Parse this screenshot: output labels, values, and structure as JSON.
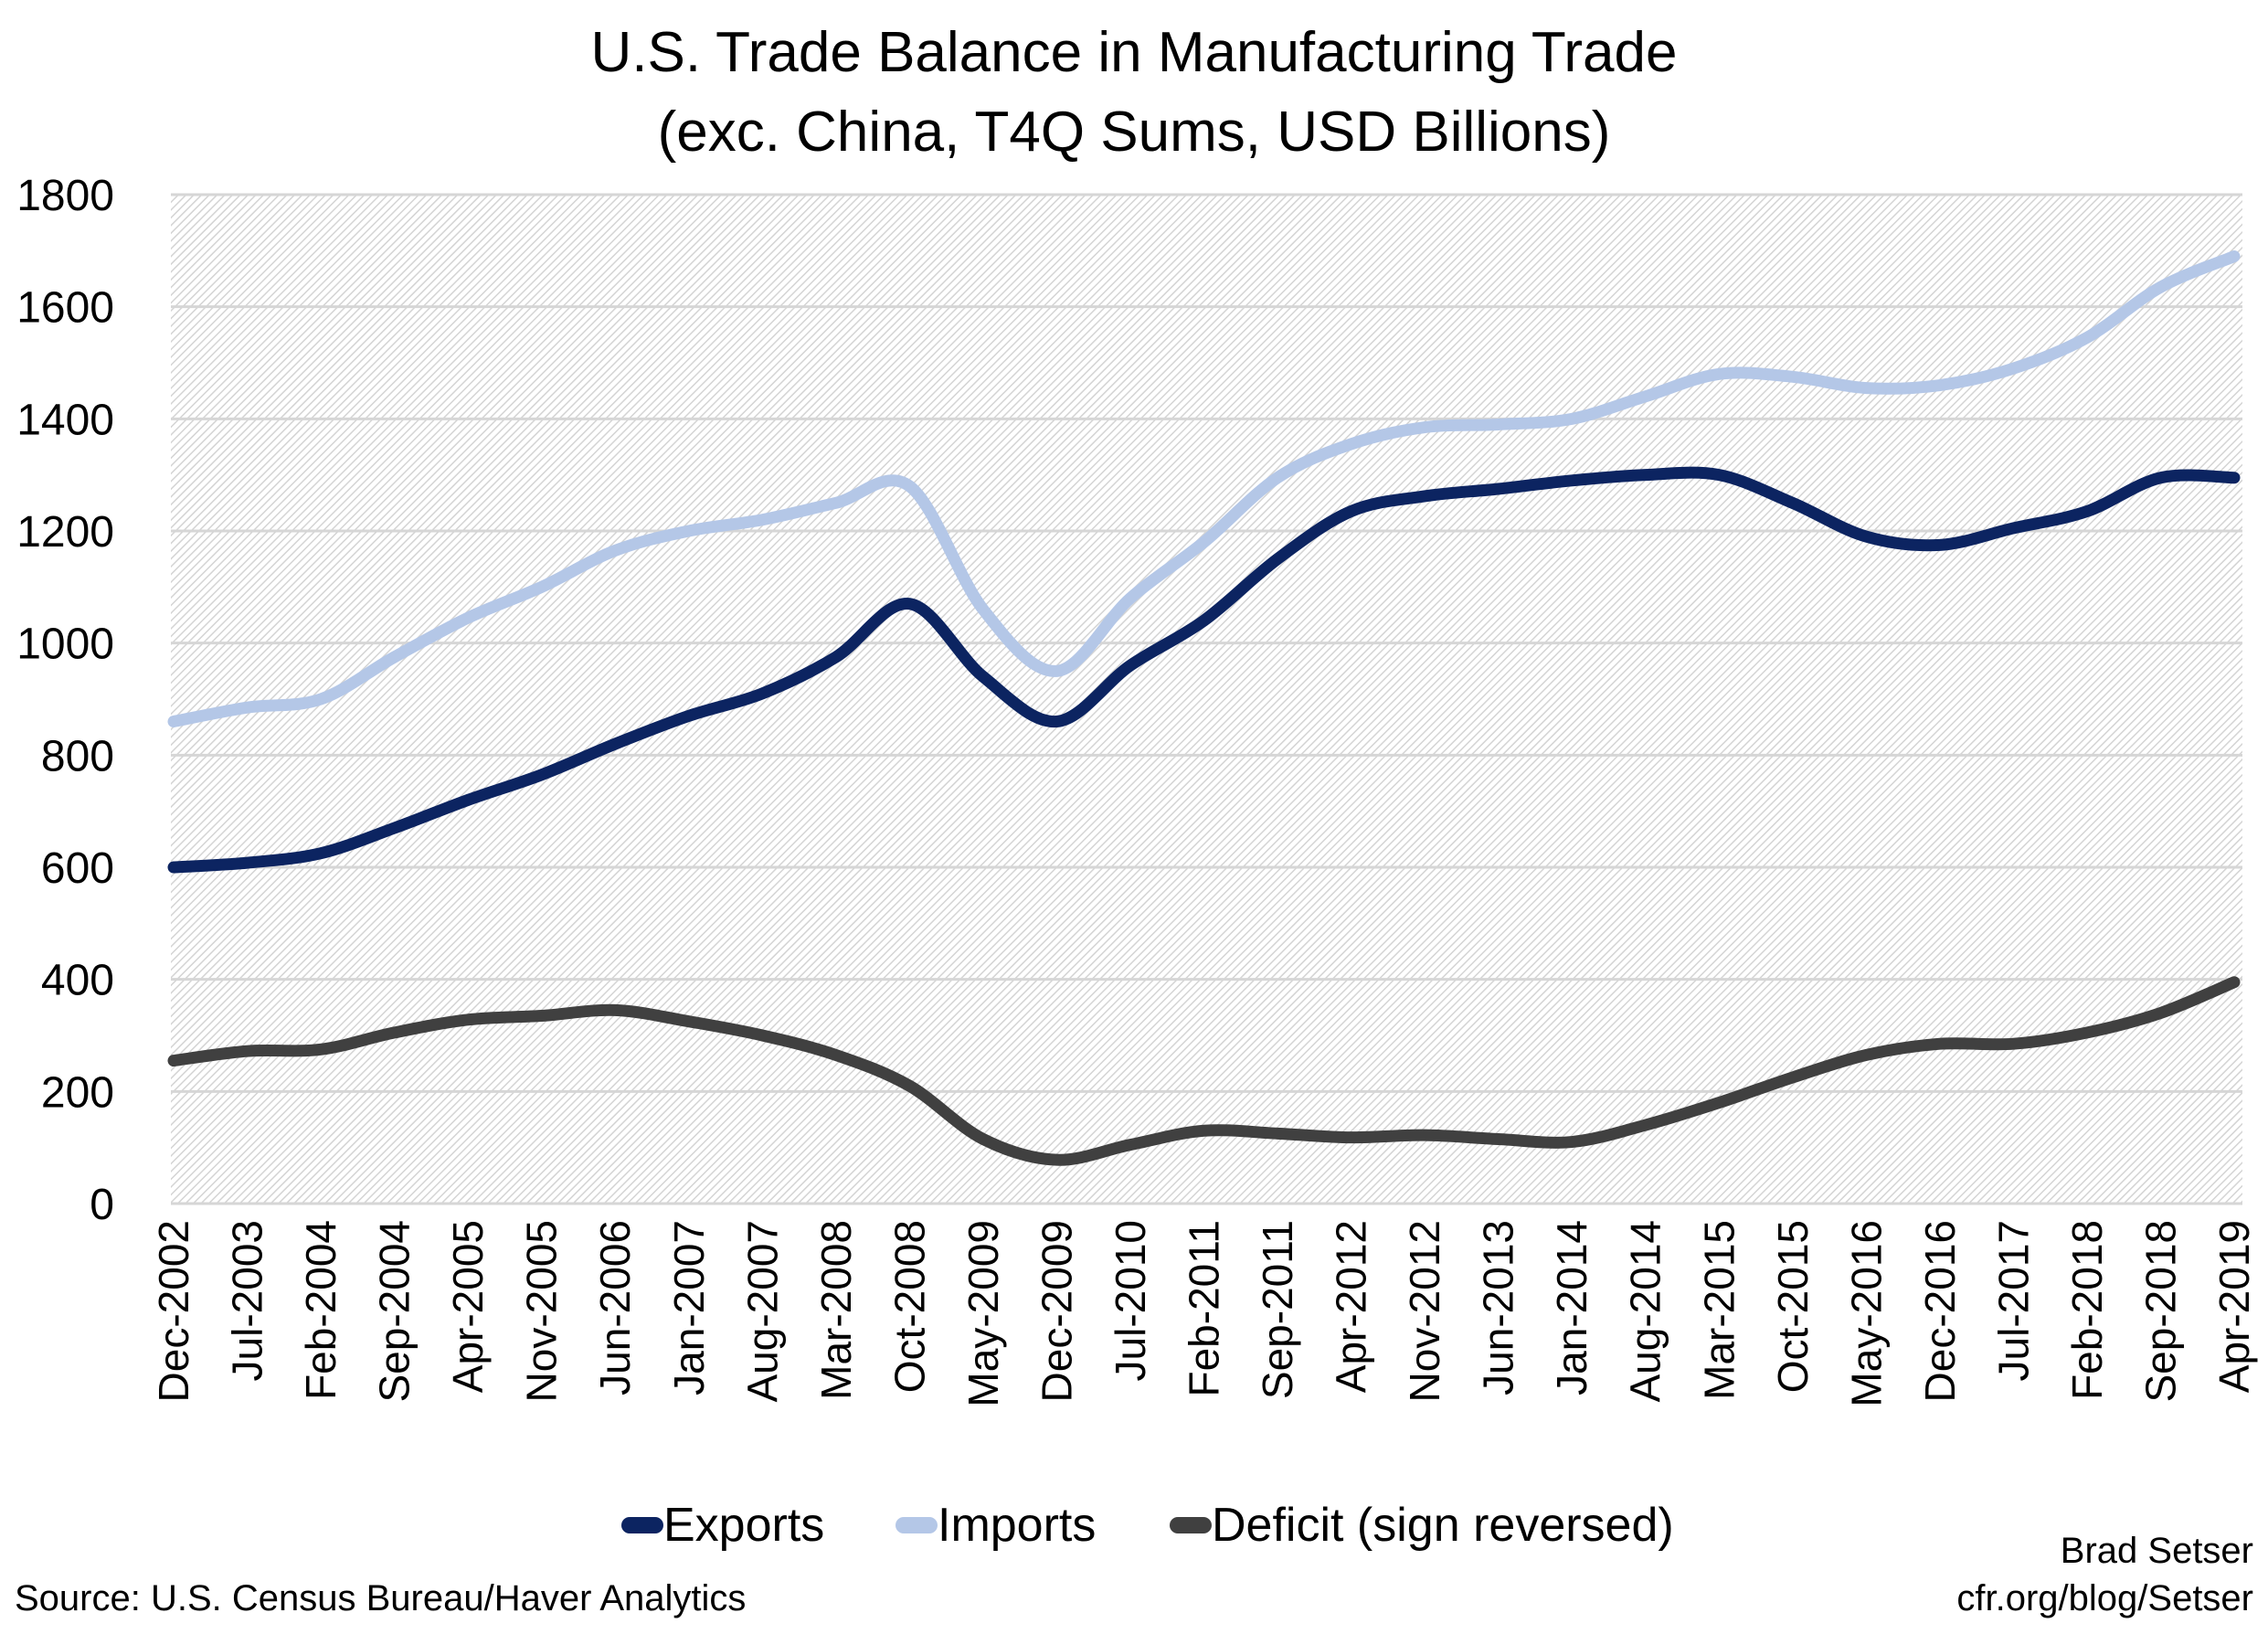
{
  "chart_data": {
    "type": "line",
    "title": "U.S. Trade Balance in Manufacturing Trade",
    "subtitle": "(exc. China, T4Q Sums, USD Billions)",
    "xlabel": "",
    "ylabel": "",
    "ylim": [
      0,
      1800
    ],
    "yticks": [
      0,
      200,
      400,
      600,
      800,
      1000,
      1200,
      1400,
      1600,
      1800
    ],
    "grid": true,
    "legend_position": "bottom",
    "categories": [
      "Dec-2002",
      "Jul-2003",
      "Feb-2004",
      "Sep-2004",
      "Apr-2005",
      "Nov-2005",
      "Jun-2006",
      "Jan-2007",
      "Aug-2007",
      "Mar-2008",
      "Oct-2008",
      "May-2009",
      "Dec-2009",
      "Jul-2010",
      "Feb-2011",
      "Sep-2011",
      "Apr-2012",
      "Nov-2012",
      "Jun-2013",
      "Jan-2014",
      "Aug-2014",
      "Mar-2015",
      "Oct-2015",
      "May-2016",
      "Dec-2016",
      "Jul-2017",
      "Feb-2018",
      "Sep-2018",
      "Apr-2019"
    ],
    "series": [
      {
        "name": "Exports",
        "color": "#0c2461",
        "values": [
          600,
          608,
          625,
          670,
          720,
          765,
          820,
          870,
          910,
          975,
          1070,
          940,
          860,
          960,
          1040,
          1150,
          1235,
          1262,
          1275,
          1290,
          1300,
          1300,
          1250,
          1190,
          1175,
          1205,
          1235,
          1295,
          1295
        ]
      },
      {
        "name": "Imports",
        "color": "#b4c7e7",
        "values": [
          860,
          885,
          900,
          975,
          1045,
          1100,
          1165,
          1200,
          1220,
          1250,
          1280,
          1060,
          950,
          1080,
          1180,
          1295,
          1355,
          1385,
          1390,
          1400,
          1440,
          1480,
          1475,
          1455,
          1460,
          1490,
          1545,
          1635,
          1690
        ]
      },
      {
        "name": "Deficit (sign reversed)",
        "color": "#404040",
        "values": [
          255,
          272,
          275,
          305,
          328,
          335,
          345,
          325,
          300,
          265,
          210,
          115,
          78,
          105,
          130,
          125,
          118,
          122,
          115,
          110,
          140,
          180,
          225,
          265,
          285,
          285,
          305,
          340,
          395
        ]
      }
    ]
  },
  "footer": {
    "source": "Source: U.S. Census Bureau/Haver Analytics",
    "author": "Brad Setser",
    "url": "cfr.org/blog/Setser"
  }
}
